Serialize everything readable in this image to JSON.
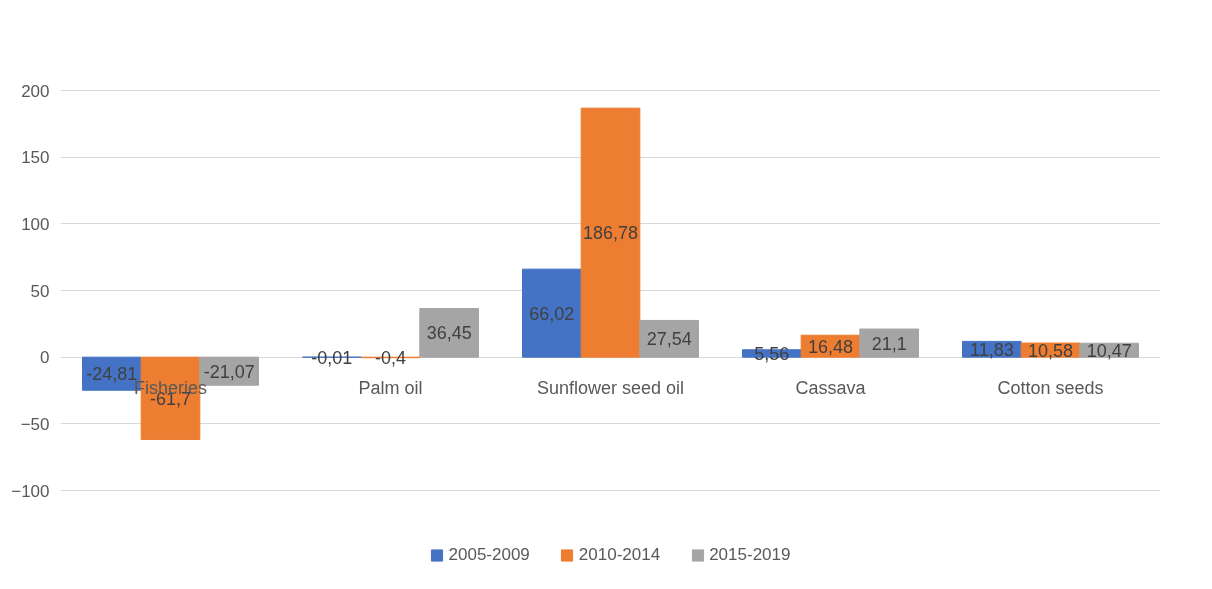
{
  "chart_data": {
    "type": "bar",
    "categories": [
      "Fisheries",
      "Palm oil",
      "Sunflower seed oil",
      "Cassava",
      "Cotton seeds"
    ],
    "series": [
      {
        "name": "2005-2009",
        "color": "#4472c4",
        "values": [
          -24.81,
          -0.01,
          66.02,
          5.56,
          11.83
        ],
        "value_labels": [
          "-24,81",
          "-0,01",
          "66,02",
          "5,56",
          "11,83"
        ]
      },
      {
        "name": "2010-2014",
        "color": "#ed7d31",
        "values": [
          -61.7,
          -0.4,
          186.78,
          16.48,
          10.58
        ],
        "value_labels": [
          "-61,7",
          "-0,4",
          "186,78",
          "16,48",
          "10,58"
        ]
      },
      {
        "name": "2015-2019",
        "color": "#a5a5a5",
        "values": [
          -21.07,
          36.45,
          27.54,
          21.1,
          10.47
        ],
        "value_labels": [
          "-21,07",
          "36,45",
          "27,54",
          "21,1",
          "10,47"
        ]
      }
    ],
    "ylim": [
      -100,
      200
    ],
    "yticks": [
      -100,
      -50,
      0,
      50,
      100,
      150,
      200
    ],
    "grid": "y",
    "legend": "bottom"
  }
}
